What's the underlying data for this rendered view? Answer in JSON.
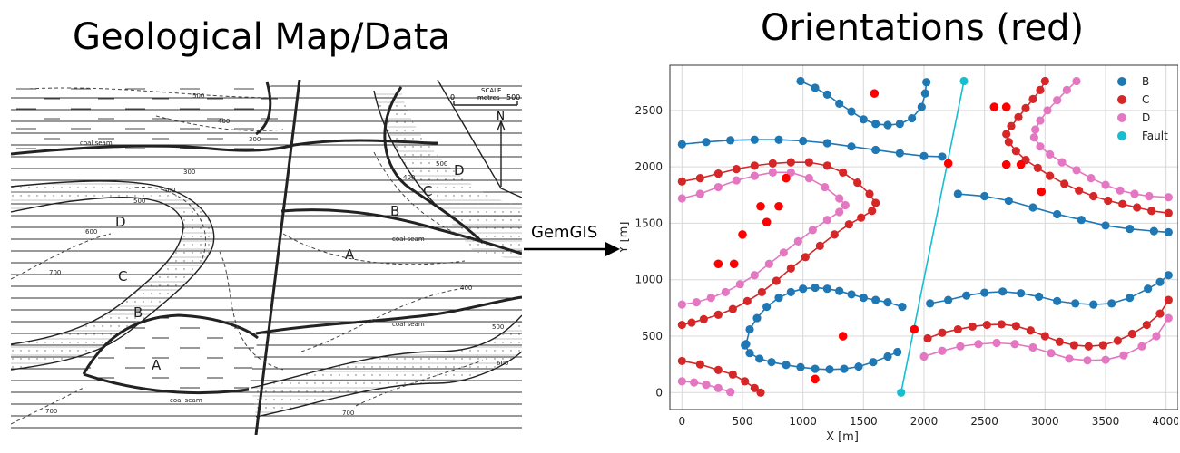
{
  "left_panel": {
    "title": "Geological Map/Data",
    "map_labels": {
      "scale_title": "SCALE",
      "scale_unit": "metres",
      "scale_zero": "0",
      "scale_max": "500",
      "north": "N",
      "coal_seam": "coal seam",
      "unit_a": "A",
      "unit_b": "B",
      "unit_c": "C",
      "unit_d": "D",
      "contour_300": "300",
      "contour_400": "400",
      "contour_500": "500",
      "contour_600": "600",
      "contour_700": "700"
    }
  },
  "connector": {
    "label": "GemGIS"
  },
  "right_panel": {
    "title": "Orientations (red)"
  },
  "chart_data": {
    "type": "scatter",
    "xlabel": "X [m]",
    "ylabel": "Y [m]",
    "xlim": [
      -100,
      4100
    ],
    "ylim": [
      -150,
      2900
    ],
    "xticks": [
      0,
      500,
      1000,
      1500,
      2000,
      2500,
      3000,
      3500,
      4000
    ],
    "yticks": [
      0,
      500,
      1000,
      1500,
      2000,
      2500
    ],
    "grid": true,
    "legend_position": "top-right",
    "colors": {
      "B": "#1f77b4",
      "C": "#d62728",
      "D": "#e377c2",
      "Fault": "#17becf",
      "orientations": "#ff0000"
    },
    "series": [
      {
        "name": "B",
        "segments": [
          [
            [
              980,
              2760
            ],
            [
              1100,
              2700
            ],
            [
              1200,
              2640
            ],
            [
              1300,
              2560
            ],
            [
              1400,
              2490
            ],
            [
              1500,
              2420
            ],
            [
              1600,
              2380
            ],
            [
              1700,
              2370
            ],
            [
              1800,
              2380
            ],
            [
              1900,
              2430
            ],
            [
              1980,
              2530
            ],
            [
              2010,
              2650
            ],
            [
              2020,
              2750
            ]
          ],
          [
            [
              0,
              2200
            ],
            [
              200,
              2220
            ],
            [
              400,
              2235
            ],
            [
              600,
              2240
            ],
            [
              800,
              2240
            ],
            [
              1000,
              2230
            ],
            [
              1200,
              2210
            ],
            [
              1400,
              2180
            ],
            [
              1600,
              2150
            ],
            [
              1800,
              2120
            ],
            [
              2000,
              2095
            ],
            [
              2150,
              2090
            ]
          ],
          [
            [
              2280,
              1760
            ],
            [
              2500,
              1740
            ],
            [
              2700,
              1700
            ],
            [
              2900,
              1640
            ],
            [
              3100,
              1580
            ],
            [
              3300,
              1530
            ],
            [
              3500,
              1480
            ],
            [
              3700,
              1450
            ],
            [
              3900,
              1430
            ],
            [
              4020,
              1420
            ]
          ],
          [
            [
              530,
              430
            ],
            [
              560,
              560
            ],
            [
              620,
              660
            ],
            [
              700,
              760
            ],
            [
              800,
              840
            ],
            [
              900,
              890
            ],
            [
              1000,
              920
            ],
            [
              1100,
              930
            ],
            [
              1200,
              920
            ],
            [
              1300,
              900
            ],
            [
              1400,
              870
            ],
            [
              1500,
              840
            ],
            [
              1600,
              820
            ],
            [
              1700,
              800
            ],
            [
              1820,
              760
            ]
          ],
          [
            [
              520,
              420
            ],
            [
              560,
              350
            ],
            [
              640,
              300
            ],
            [
              740,
              270
            ],
            [
              860,
              245
            ],
            [
              980,
              225
            ],
            [
              1100,
              210
            ],
            [
              1220,
              205
            ],
            [
              1340,
              210
            ],
            [
              1460,
              230
            ],
            [
              1580,
              270
            ],
            [
              1700,
              320
            ],
            [
              1780,
              360
            ]
          ],
          [
            [
              2050,
              790
            ],
            [
              2200,
              820
            ],
            [
              2350,
              860
            ],
            [
              2500,
              885
            ],
            [
              2650,
              895
            ],
            [
              2800,
              880
            ],
            [
              2950,
              850
            ],
            [
              3100,
              810
            ],
            [
              3250,
              790
            ],
            [
              3400,
              780
            ],
            [
              3550,
              790
            ],
            [
              3700,
              840
            ],
            [
              3850,
              920
            ],
            [
              3950,
              980
            ],
            [
              4020,
              1040
            ]
          ]
        ]
      },
      {
        "name": "C",
        "segments": [
          [
            [
              0,
              1870
            ],
            [
              150,
              1900
            ],
            [
              300,
              1940
            ],
            [
              450,
              1980
            ],
            [
              600,
              2010
            ],
            [
              750,
              2030
            ],
            [
              900,
              2040
            ],
            [
              1050,
              2040
            ],
            [
              1200,
              2010
            ],
            [
              1330,
              1950
            ],
            [
              1450,
              1860
            ],
            [
              1550,
              1760
            ],
            [
              1600,
              1680
            ],
            [
              1570,
              1610
            ],
            [
              1480,
              1550
            ],
            [
              1380,
              1490
            ],
            [
              1260,
              1400
            ],
            [
              1140,
              1300
            ],
            [
              1020,
              1200
            ],
            [
              900,
              1100
            ],
            [
              780,
              990
            ],
            [
              660,
              890
            ],
            [
              540,
              810
            ],
            [
              420,
              740
            ],
            [
              300,
              690
            ],
            [
              180,
              650
            ],
            [
              80,
              620
            ],
            [
              0,
              600
            ]
          ],
          [
            [
              3000,
              2760
            ],
            [
              2960,
              2680
            ],
            [
              2900,
              2600
            ],
            [
              2840,
              2520
            ],
            [
              2780,
              2440
            ],
            [
              2720,
              2360
            ],
            [
              2680,
              2290
            ],
            [
              2700,
              2220
            ],
            [
              2760,
              2140
            ],
            [
              2840,
              2060
            ],
            [
              2940,
              1990
            ],
            [
              3040,
              1920
            ],
            [
              3160,
              1850
            ],
            [
              3280,
              1790
            ],
            [
              3400,
              1740
            ],
            [
              3520,
              1700
            ],
            [
              3640,
              1670
            ],
            [
              3760,
              1640
            ],
            [
              3880,
              1610
            ],
            [
              4020,
              1590
            ]
          ],
          [
            [
              0,
              280
            ],
            [
              150,
              250
            ],
            [
              300,
              200
            ],
            [
              420,
              160
            ],
            [
              520,
              100
            ],
            [
              600,
              40
            ],
            [
              650,
              0
            ]
          ],
          [
            [
              2030,
              480
            ],
            [
              2150,
              530
            ],
            [
              2280,
              560
            ],
            [
              2400,
              585
            ],
            [
              2520,
              600
            ],
            [
              2640,
              605
            ],
            [
              2760,
              590
            ],
            [
              2880,
              550
            ],
            [
              3000,
              500
            ],
            [
              3120,
              450
            ],
            [
              3240,
              420
            ],
            [
              3360,
              410
            ],
            [
              3480,
              420
            ],
            [
              3600,
              460
            ],
            [
              3720,
              520
            ],
            [
              3840,
              600
            ],
            [
              3950,
              700
            ],
            [
              4020,
              820
            ]
          ]
        ]
      },
      {
        "name": "D",
        "segments": [
          [
            [
              0,
              1720
            ],
            [
              150,
              1760
            ],
            [
              300,
              1820
            ],
            [
              450,
              1880
            ],
            [
              600,
              1920
            ],
            [
              750,
              1950
            ],
            [
              900,
              1950
            ],
            [
              1050,
              1900
            ],
            [
              1180,
              1820
            ],
            [
              1300,
              1720
            ],
            [
              1350,
              1660
            ],
            [
              1300,
              1600
            ],
            [
              1200,
              1530
            ],
            [
              1080,
              1440
            ],
            [
              960,
              1340
            ],
            [
              840,
              1240
            ],
            [
              720,
              1140
            ],
            [
              600,
              1040
            ],
            [
              480,
              960
            ],
            [
              360,
              890
            ],
            [
              240,
              840
            ],
            [
              120,
              800
            ],
            [
              0,
              780
            ]
          ],
          [
            [
              3260,
              2760
            ],
            [
              3180,
              2680
            ],
            [
              3100,
              2590
            ],
            [
              3020,
              2500
            ],
            [
              2960,
              2410
            ],
            [
              2920,
              2330
            ],
            [
              2910,
              2260
            ],
            [
              2960,
              2180
            ],
            [
              3040,
              2110
            ],
            [
              3140,
              2040
            ],
            [
              3260,
              1970
            ],
            [
              3380,
              1900
            ],
            [
              3500,
              1840
            ],
            [
              3620,
              1790
            ],
            [
              3740,
              1760
            ],
            [
              3860,
              1740
            ],
            [
              4020,
              1730
            ]
          ],
          [
            [
              0,
              100
            ],
            [
              100,
              90
            ],
            [
              200,
              70
            ],
            [
              300,
              40
            ],
            [
              400,
              5
            ]
          ],
          [
            [
              2000,
              320
            ],
            [
              2150,
              370
            ],
            [
              2300,
              410
            ],
            [
              2450,
              430
            ],
            [
              2600,
              440
            ],
            [
              2750,
              430
            ],
            [
              2900,
              400
            ],
            [
              3050,
              350
            ],
            [
              3200,
              300
            ],
            [
              3350,
              285
            ],
            [
              3500,
              290
            ],
            [
              3650,
              330
            ],
            [
              3800,
              410
            ],
            [
              3920,
              500
            ],
            [
              4020,
              660
            ]
          ]
        ]
      },
      {
        "name": "Fault",
        "segments": [
          [
            [
              1810,
              0
            ],
            [
              2330,
              2760
            ]
          ]
        ]
      }
    ],
    "orientations": [
      [
        1590,
        2650
      ],
      [
        2580,
        2530
      ],
      [
        2680,
        2530
      ],
      [
        860,
        1900
      ],
      [
        2200,
        2030
      ],
      [
        2680,
        2020
      ],
      [
        2800,
        2020
      ],
      [
        2970,
        1780
      ],
      [
        650,
        1650
      ],
      [
        800,
        1650
      ],
      [
        700,
        1510
      ],
      [
        500,
        1400
      ],
      [
        300,
        1140
      ],
      [
        430,
        1140
      ],
      [
        1330,
        500
      ],
      [
        1920,
        560
      ],
      [
        1100,
        120
      ]
    ]
  }
}
